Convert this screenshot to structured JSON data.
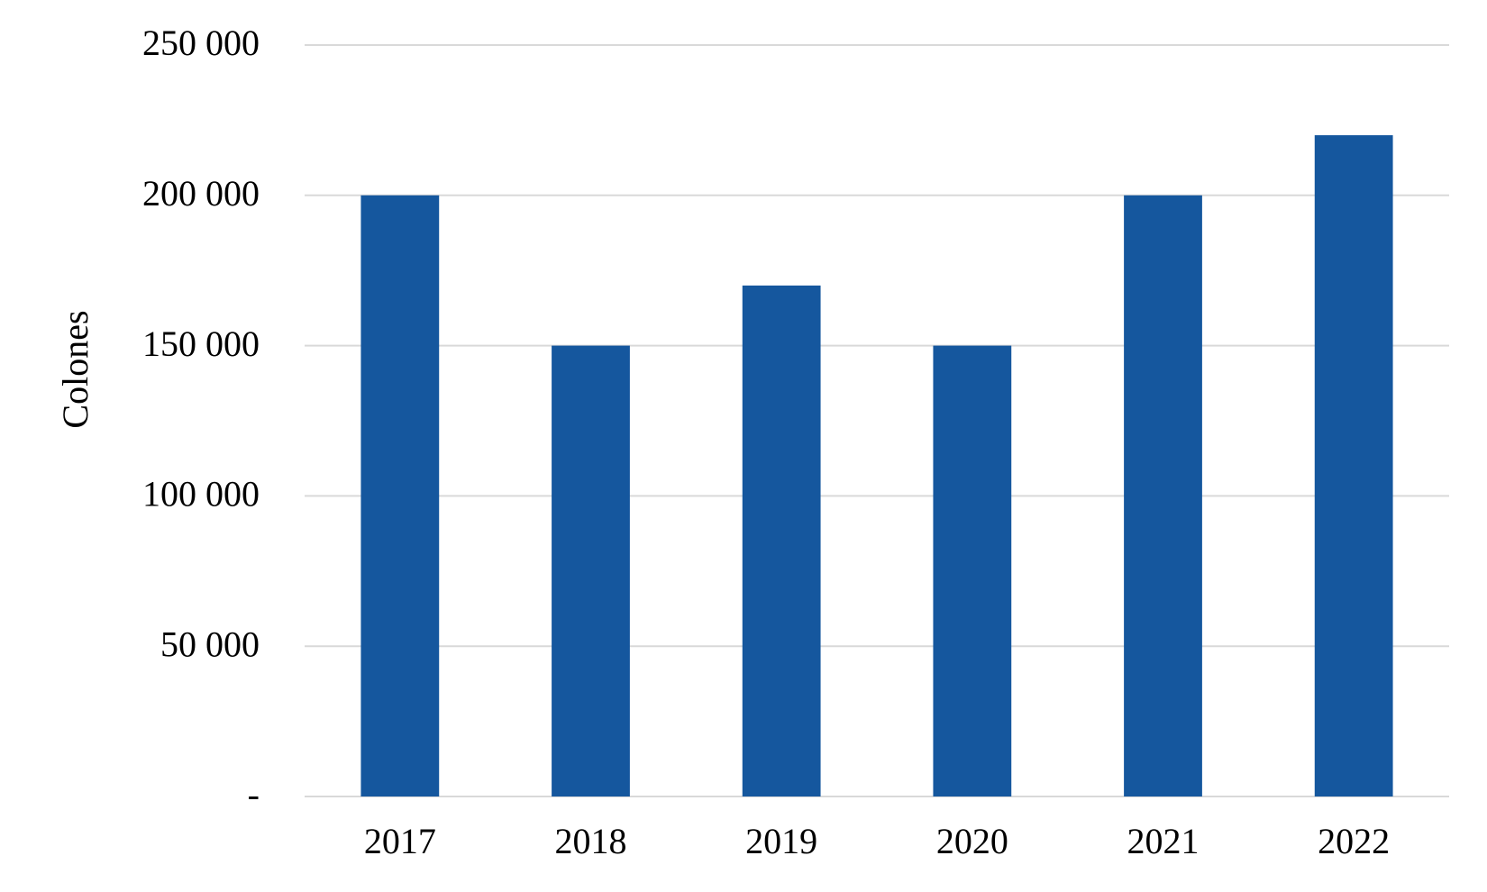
{
  "chart_data": {
    "type": "bar",
    "y_label": "Colones",
    "categories": [
      "2017",
      "2018",
      "2019",
      "2020",
      "2021",
      "2022"
    ],
    "values": [
      200000,
      150000,
      170000,
      150000,
      200000,
      220000
    ],
    "color": "#15579e",
    "ylim": [
      0,
      250000
    ],
    "yticks": [
      {
        "value": 0,
        "label": "-"
      },
      {
        "value": 50000,
        "label": "50 000"
      },
      {
        "value": 100000,
        "label": "100 000"
      },
      {
        "value": 150000,
        "label": "150 000"
      },
      {
        "value": 200000,
        "label": "200 000"
      },
      {
        "value": 250000,
        "label": "250 000"
      }
    ],
    "grid": true
  }
}
